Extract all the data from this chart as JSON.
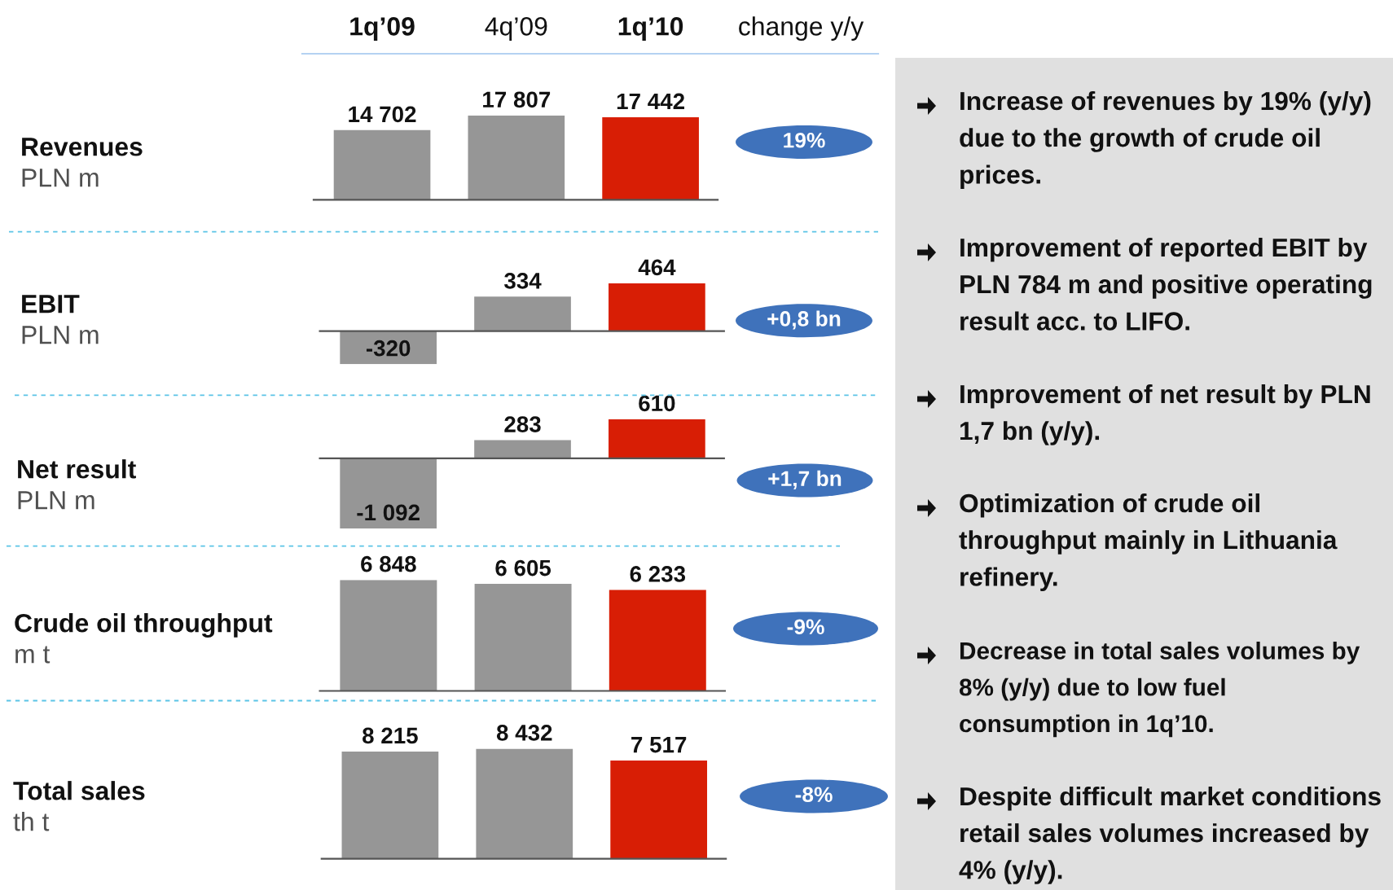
{
  "chart_data": [
    {
      "type": "bar",
      "ylabel": "Revenues",
      "categories": [
        "1q’09",
        "4q’09",
        "1q’10"
      ],
      "values": [
        14702,
        17807,
        17442
      ],
      "colors": [
        "#969696",
        "#969696",
        "#d81e05"
      ],
      "value_labels": [
        "14 702",
        "17 807",
        "17 442"
      ],
      "annotations": [
        "PLN m",
        "change y/y",
        "19%"
      ],
      "tick_labels": "x"
    },
    {
      "type": "bar",
      "ylabel": "EBIT",
      "categories": [
        null,
        null,
        null
      ],
      "values": [
        -320,
        334,
        464
      ],
      "colors": [
        "#969696",
        "#969696",
        "#d81e05"
      ],
      "value_labels": [
        "-320",
        "334",
        "464"
      ],
      "annotations": [
        "PLN m",
        "+0,8 bn"
      ]
    },
    {
      "type": "bar",
      "ylabel": "Net result",
      "categories": [
        null,
        null,
        null
      ],
      "values": [
        -1092,
        283,
        610
      ],
      "colors": [
        "#969696",
        "#969696",
        "#d81e05"
      ],
      "value_labels": [
        "-1 092",
        "283",
        "610"
      ],
      "annotations": [
        "PLN m",
        "+1,7 bn"
      ]
    },
    {
      "type": "bar",
      "ylabel": "Crude oil throughput",
      "categories": [
        null,
        null,
        null
      ],
      "values": [
        6848,
        6605,
        6233
      ],
      "colors": [
        "#969696",
        "#969696",
        "#d81e05"
      ],
      "value_labels": [
        "6 848",
        "6 605",
        "6 233"
      ],
      "annotations": [
        "m t",
        "-9%"
      ]
    },
    {
      "type": "bar",
      "ylabel": "Total sales",
      "categories": [
        null,
        null,
        null
      ],
      "values": [
        8215,
        8432,
        7517
      ],
      "colors": [
        "#969696",
        "#969696",
        "#d81e05"
      ],
      "value_labels": [
        "8 215",
        "8 432",
        "7 517"
      ],
      "annotations": [
        "th t",
        "-8%"
      ]
    },
    {
      "type": "other",
      "annotations": [
        "Increase of revenues by 19% (y/y)\ndue to the growth of crude oil\nprices.",
        "Improvement of reported EBIT by\nPLN 784 m and positive operating\nresult acc. to LIFO.",
        "Improvement of net result by PLN\n1,7 bn (y/y).",
        "Optimization of crude oil\nthroughput mainly in Lithuania\nrefinery.",
        "Decrease in total sales volumes by\n8% (y/y) due to low fuel\nconsumption in 1q’10.",
        "Despite difficult market conditions\nretail sales volumes increased by\n4% (y/y)."
      ]
    }
  ]
}
